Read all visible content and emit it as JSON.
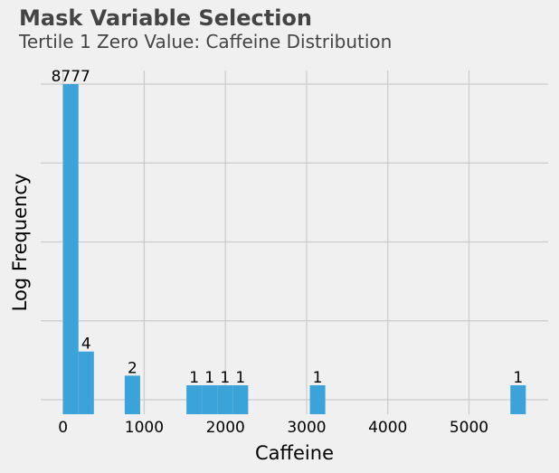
{
  "chart_data": {
    "type": "bar",
    "title": "Mask Variable Selection",
    "subtitle": "Tertile 1 Zero Value: Caffeine Distribution",
    "xlabel": "Caffeine",
    "ylabel": "Log Frequency",
    "yscale": "log",
    "xlim": [
      -275,
      5975
    ],
    "xticks": [
      0,
      1000,
      2000,
      3000,
      4000,
      5000
    ],
    "xtick_labels": [
      "0",
      "1000",
      "2000",
      "3000",
      "4000",
      "5000"
    ],
    "grid": true,
    "bin_width": 190,
    "bars": [
      {
        "x0": 0,
        "x1": 190,
        "count": 8777,
        "label": "8777"
      },
      {
        "x0": 190,
        "x1": 380,
        "count": 4,
        "label": "4"
      },
      {
        "x0": 760,
        "x1": 950,
        "count": 2,
        "label": "2"
      },
      {
        "x0": 1520,
        "x1": 1710,
        "count": 1,
        "label": "1"
      },
      {
        "x0": 1710,
        "x1": 1900,
        "count": 1,
        "label": "1"
      },
      {
        "x0": 1900,
        "x1": 2090,
        "count": 1,
        "label": "1"
      },
      {
        "x0": 2090,
        "x1": 2280,
        "count": 1,
        "label": "1"
      },
      {
        "x0": 3040,
        "x1": 3230,
        "count": 1,
        "label": "1"
      },
      {
        "x0": 5510,
        "x1": 5700,
        "count": 1,
        "label": "1"
      }
    ],
    "colors": {
      "bar": "#3ba2da",
      "grid": "#cbcbcb",
      "text": "#000000",
      "background": "#f0f0f0"
    }
  }
}
